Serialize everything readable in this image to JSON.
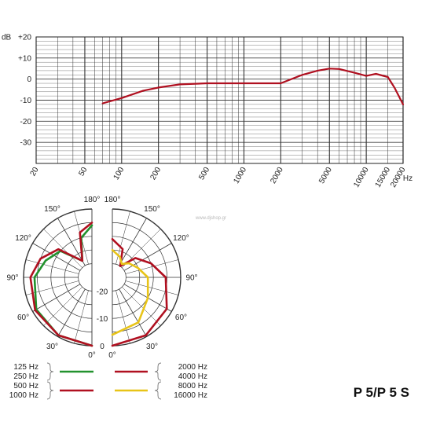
{
  "chart_data": [
    {
      "type": "line",
      "ylabel": "dB",
      "xunit": "Hz",
      "xscale": "log",
      "xlim": [
        20,
        20000
      ],
      "ylim": [
        -40,
        20
      ],
      "y_ticks": [
        {
          "value": 20,
          "label": "+20"
        },
        {
          "value": 10,
          "label": "+10"
        },
        {
          "value": 0,
          "label": "0"
        },
        {
          "value": -10,
          "label": "-10"
        },
        {
          "value": -20,
          "label": "-20"
        },
        {
          "value": -30,
          "label": "-30"
        }
      ],
      "x_ticks": [
        {
          "value": 20,
          "label": "20"
        },
        {
          "value": 50,
          "label": "50"
        },
        {
          "value": 100,
          "label": "100"
        },
        {
          "value": 200,
          "label": "200"
        },
        {
          "value": 500,
          "label": "500"
        },
        {
          "value": 1000,
          "label": "1000"
        },
        {
          "value": 2000,
          "label": "2000"
        },
        {
          "value": 5000,
          "label": "5000"
        },
        {
          "value": 10000,
          "label": "10000"
        },
        {
          "value": 15000,
          "label": "15000"
        },
        {
          "value": 20000,
          "label": "20000"
        }
      ],
      "grid": true,
      "series": [
        {
          "color": "#b01020",
          "points": [
            [
              70,
              -11.5
            ],
            [
              100,
              -9
            ],
            [
              150,
              -5.5
            ],
            [
              200,
              -4
            ],
            [
              300,
              -2.5
            ],
            [
              500,
              -2
            ],
            [
              1000,
              -2
            ],
            [
              2000,
              -2
            ],
            [
              3000,
              2
            ],
            [
              4000,
              4
            ],
            [
              5000,
              5
            ],
            [
              6000,
              4.8
            ],
            [
              8000,
              3
            ],
            [
              10000,
              1.5
            ],
            [
              12000,
              2.5
            ],
            [
              15000,
              1
            ],
            [
              17000,
              -4
            ],
            [
              20000,
              -12
            ]
          ]
        }
      ]
    },
    {
      "type": "polar",
      "angle_labels": [
        {
          "value": 0,
          "label": "0°"
        },
        {
          "value": 30,
          "label": "30°"
        },
        {
          "value": 60,
          "label": "60°"
        },
        {
          "value": 90,
          "label": "90°"
        },
        {
          "value": 120,
          "label": "120°"
        },
        {
          "value": 150,
          "label": "150°"
        },
        {
          "value": 180,
          "label": "180°"
        }
      ],
      "radial_labels": [
        {
          "value": 0,
          "label": "0"
        },
        {
          "value": -10,
          "label": "-10"
        },
        {
          "value": -20,
          "label": "-20"
        }
      ],
      "rlim": [
        -25,
        0
      ],
      "legend": {
        "left": [
          {
            "label": "125 Hz"
          },
          {
            "label": "250 Hz"
          },
          {
            "label": "500 Hz"
          },
          {
            "label": "1000 Hz"
          }
        ],
        "right": [
          {
            "label": "2000 Hz"
          },
          {
            "label": "4000 Hz"
          },
          {
            "label": "8000 Hz"
          },
          {
            "label": "16000 Hz"
          }
        ]
      },
      "series": [
        {
          "side": "left",
          "color": "#22922e",
          "points": [
            [
              0,
              0
            ],
            [
              30,
              -0.5
            ],
            [
              60,
              -1.5
            ],
            [
              90,
              -4
            ],
            [
              110,
              -7
            ],
            [
              130,
              -10
            ],
            [
              150,
              -18
            ],
            [
              165,
              -10
            ],
            [
              180,
              -6
            ]
          ]
        },
        {
          "side": "left",
          "color": "#b01020",
          "points": [
            [
              0,
              0
            ],
            [
              30,
              -0.5
            ],
            [
              60,
              -1
            ],
            [
              90,
              -2.5
            ],
            [
              110,
              -5
            ],
            [
              130,
              -9
            ],
            [
              150,
              -18
            ],
            [
              165,
              -8
            ],
            [
              180,
              -5
            ]
          ]
        },
        {
          "side": "right",
          "color": "#b01020",
          "points": [
            [
              0,
              0
            ],
            [
              30,
              -0.5
            ],
            [
              60,
              -2
            ],
            [
              90,
              -5.5
            ],
            [
              110,
              -10
            ],
            [
              130,
              -14
            ],
            [
              145,
              -20
            ],
            [
              160,
              -14
            ],
            [
              180,
              -11
            ]
          ]
        },
        {
          "side": "right",
          "color": "#e8c418",
          "points": [
            [
              0,
              -4
            ],
            [
              30,
              -6
            ],
            [
              60,
              -10
            ],
            [
              90,
              -12
            ],
            [
              110,
              -15
            ],
            [
              130,
              -17
            ],
            [
              145,
              -19
            ],
            [
              160,
              -17
            ],
            [
              180,
              -15
            ]
          ]
        }
      ]
    }
  ],
  "model_label": "P 5/P 5 S",
  "watermark": "www.djshop.gr",
  "colors": {
    "red": "#b01020",
    "green": "#22922e",
    "yellow": "#e8c418"
  }
}
